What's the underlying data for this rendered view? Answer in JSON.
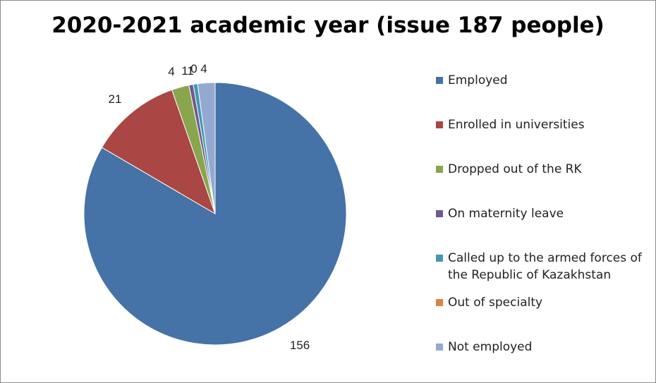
{
  "chart_data": {
    "type": "pie",
    "title": "2020-2021 academic year (issue 187 people)",
    "categories": [
      "Employed",
      "Enrolled in universities",
      "Dropped out of the RK",
      "On maternity leave",
      "Called up to the armed forces of the Republic of Kazakhstan",
      "Out of specialty",
      "Not employed"
    ],
    "values": [
      156,
      21,
      4,
      1,
      1,
      0,
      4
    ],
    "data_labels": [
      "156",
      "21",
      "4",
      "1",
      "1",
      "0",
      "4"
    ],
    "colors": [
      "#4572A7",
      "#AA4643",
      "#89A54E",
      "#71588F",
      "#4198AF",
      "#DB843D",
      "#93A9CF"
    ],
    "legend_position": "right"
  }
}
